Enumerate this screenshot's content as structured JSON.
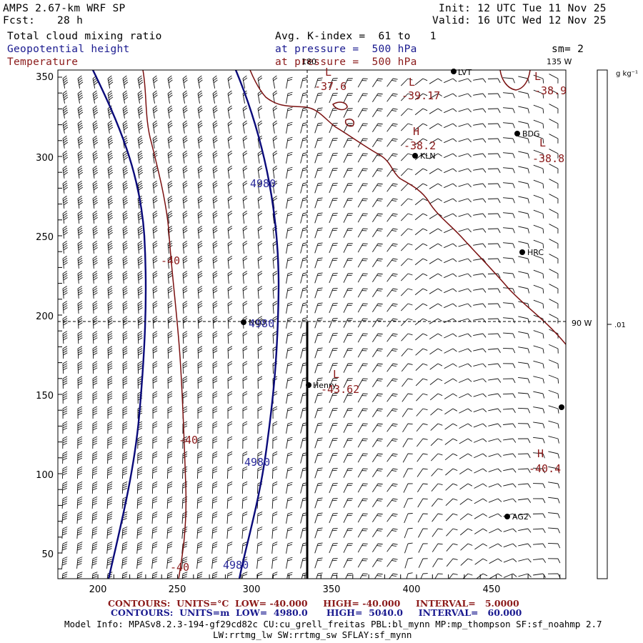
{
  "header": {
    "model": "AMPS 2.67-km WRF SP",
    "fcst_label": "Fcst:",
    "fcst_value": "28 h",
    "init": "Init: 12 UTC Tue 11 Nov 25",
    "valid": "Valid: 16 UTC Wed 12 Nov 25",
    "field1": "Total cloud mixing ratio",
    "field2": "Geopotential height",
    "field3": "Temperature",
    "avg": "Avg. K-index =  61 to   1",
    "pressure1": "at pressure =  500 hPa",
    "pressure2": "at pressure =  500 hPa",
    "smoothing": "sm= 2"
  },
  "colorbar": {
    "units": "g kg⁻¹",
    "tick": ".01"
  },
  "map": {
    "xticks": [
      "200",
      "250",
      "300",
      "350",
      "400",
      "450"
    ],
    "yticks": [
      "350",
      "300",
      "250",
      "200",
      "150",
      "100",
      "50"
    ],
    "lon_labels": [
      "180",
      "135 W",
      "90 W"
    ],
    "stations": [
      {
        "name": "LVT"
      },
      {
        "name": "BDG"
      },
      {
        "name": "KLN"
      },
      {
        "name": "HRC"
      },
      {
        "name": "NCO"
      },
      {
        "name": "Henry"
      },
      {
        "name": "AG2"
      },
      {
        "name": ""
      }
    ],
    "extrema": [
      {
        "kind": "L",
        "value": "-37.6"
      },
      {
        "kind": "L",
        "value": "-39.17"
      },
      {
        "kind": "L",
        "value": "-38.9"
      },
      {
        "kind": "H",
        "value": "-38.2"
      },
      {
        "kind": "L",
        "value": "-38.8"
      },
      {
        "kind": "L",
        "value": "-43.62"
      },
      {
        "kind": "H",
        "value": "-40.4"
      }
    ],
    "temp_labels": [
      "-40",
      "-40",
      "-40"
    ],
    "height_labels": [
      "4980",
      "4980",
      "4980",
      "4980"
    ],
    "colors": {
      "height": "#0a0a7a",
      "temperature": "#7a1010",
      "barbs": "#000000"
    }
  },
  "footer": {
    "temp_contours": "CONTOURS:  UNITS=°C  LOW= -40.000     HIGH= -40.000     INTERVAL=   5.0000",
    "height_contours": "CONTOURS:  UNITS=m  LOW=  4980.0      HIGH=  5040.0     INTERVAL=   60.000",
    "model_info": "Model Info: MPASv8.2.3-194-gf29cd82c CU:cu_grell_freitas PBL:bl_mynn MP:mp_thompson SF:sf_noahmp 2.7",
    "model_info2": "LW:rrtmg_lw SW:rrtmg_sw SFLAY:sf_mynn"
  }
}
